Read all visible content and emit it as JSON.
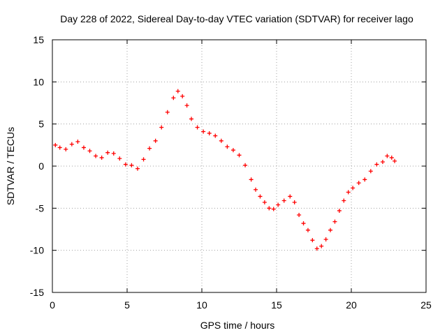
{
  "chart_data": {
    "type": "scatter",
    "title": "Day 228 of 2022, Sidereal Day-to-day VTEC variation (SDTVAR) for receiver lago",
    "xlabel": "GPS time / hours",
    "ylabel": "SDTVAR / TECUs",
    "xlim": [
      0,
      25
    ],
    "ylim": [
      -15,
      15
    ],
    "x_ticks": [
      "0",
      "5",
      "10",
      "15",
      "20",
      "25"
    ],
    "y_ticks": [
      "-15",
      "-10",
      "-5",
      "0",
      "5",
      "10",
      "15"
    ],
    "grid": true,
    "marker": "+",
    "color": "#ff0000",
    "series": [
      {
        "name": "SDTVAR",
        "x": [
          0.2,
          0.5,
          0.9,
          1.3,
          1.7,
          2.1,
          2.5,
          2.9,
          3.3,
          3.7,
          4.1,
          4.5,
          4.9,
          5.3,
          5.7,
          6.1,
          6.5,
          6.9,
          7.3,
          7.7,
          8.1,
          8.4,
          8.7,
          9.0,
          9.3,
          9.7,
          10.1,
          10.5,
          10.9,
          11.3,
          11.7,
          12.1,
          12.5,
          12.9,
          13.3,
          13.6,
          13.9,
          14.2,
          14.5,
          14.8,
          15.1,
          15.5,
          15.9,
          16.2,
          16.5,
          16.8,
          17.1,
          17.4,
          17.7,
          18.0,
          18.3,
          18.6,
          18.9,
          19.2,
          19.5,
          19.8,
          20.1,
          20.5,
          20.9,
          21.3,
          21.7,
          22.1,
          22.4,
          22.7,
          22.9
        ],
        "y": [
          2.5,
          2.2,
          2.0,
          2.6,
          2.9,
          2.2,
          1.8,
          1.2,
          1.0,
          1.6,
          1.5,
          0.9,
          0.2,
          0.1,
          -0.3,
          0.8,
          2.1,
          3.0,
          4.6,
          6.4,
          8.1,
          8.9,
          8.3,
          7.2,
          5.6,
          4.6,
          4.1,
          3.9,
          3.6,
          3.0,
          2.3,
          1.9,
          1.3,
          0.1,
          -1.6,
          -2.8,
          -3.6,
          -4.3,
          -5.0,
          -5.1,
          -4.6,
          -4.1,
          -3.6,
          -4.3,
          -5.8,
          -6.8,
          -7.6,
          -8.8,
          -9.8,
          -9.5,
          -8.7,
          -7.6,
          -6.6,
          -5.3,
          -4.1,
          -3.1,
          -2.6,
          -2.0,
          -1.6,
          -0.6,
          0.2,
          0.5,
          1.2,
          1.0,
          0.6
        ]
      }
    ]
  }
}
